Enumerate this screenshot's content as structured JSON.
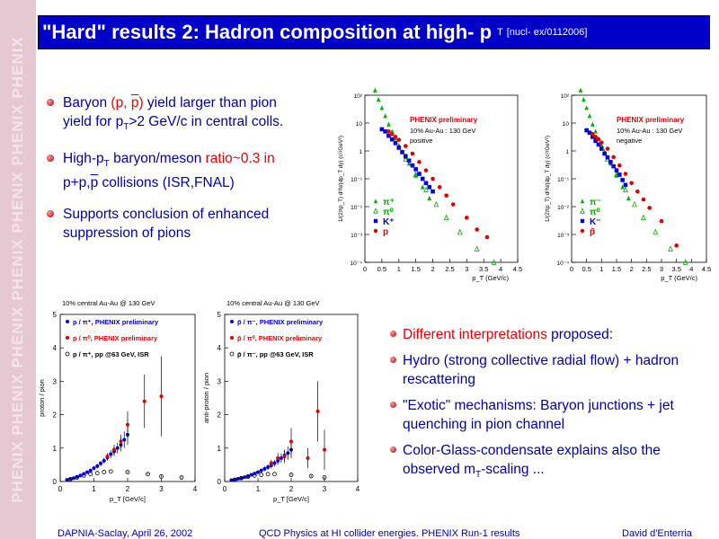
{
  "sidebar": {
    "watermark": "PHENIX PHENIX PHENIX PHENIX PHENIX PHENIX PHENIX"
  },
  "header": {
    "title_main": "\"Hard\" results 2: Hadron composition at high- p",
    "title_sub": "T",
    "title_ref": "[nucl- ex/0112006]"
  },
  "bullets_top": [
    {
      "p1": "Baryon ",
      "p2": "(p, ",
      "p3": "p",
      "p4": ")",
      "p5": " yield larger than pion",
      "p6": "yield",
      "p7": " for p",
      "p8": "T",
      "p9": ">2 GeV/c in central colls."
    },
    {
      "p1": "High-p",
      "p2": "T",
      "p3": " baryon/meson ",
      "p4": "ratio~0.3 in",
      "p5": "p+p,",
      "p6": "p",
      "p7": " collisions (ISR,FNAL)"
    },
    {
      "text": "Supports conclusion of enhanced suppression of pions"
    }
  ],
  "bullets_bottom": [
    {
      "p1": "Different interpretations",
      "p2": " proposed:"
    },
    {
      "text": "Hydro (strong collective radial flow) + hadron rescattering"
    },
    {
      "text": "\"Exotic\" mechanisms: Baryon junctions + jet quenching in pion channel"
    },
    {
      "p1": "Color-Glass-condensate explains also the observed m",
      "p2": "T",
      "p3": "-scaling ..."
    }
  ],
  "footer": {
    "left": "DAPNIA-Saclay, April 26, 2002",
    "center": "QCD Physics at HI collider energies. PHENIX Run-1 results",
    "right": "David d'Enterria"
  },
  "colors": {
    "title_bg": "#0000c8",
    "bullet_red": "#e80000",
    "text_blue": "#0000a8",
    "sidebar": "#e6c8d2"
  },
  "chart_data": [
    {
      "type": "scatter",
      "title": "PHENIX preliminary",
      "subtitle": "10% Au-Au : 130 GeV",
      "panel_label": "positive",
      "xlabel": "p_T (GeV/c)",
      "ylabel": "1/(2πp_T) d²N/(dp_T dy) (c²/GeV²)",
      "xlim": [
        0,
        4.5
      ],
      "ylim_log10": [
        -4,
        2
      ],
      "xticks": [
        "0",
        "0.5",
        "1",
        "1.5",
        "2",
        "2.5",
        "3",
        "3.5",
        "4",
        "4.5"
      ],
      "yticks": [
        "10⁻⁴",
        "10⁻³",
        "10⁻²",
        "10⁻¹",
        "1",
        "10",
        "10²"
      ],
      "legend": [
        "π⁺",
        "π⁰",
        "K⁺",
        "p"
      ],
      "series": [
        {
          "name": "π⁺",
          "color": "#00b000",
          "marker": "triangle",
          "x": [
            0.3,
            0.4,
            0.5,
            0.6,
            0.7,
            0.8,
            0.9,
            1.0,
            1.1,
            1.2,
            1.3,
            1.5,
            1.7,
            1.9
          ],
          "y": [
            150,
            70,
            35,
            18,
            9,
            5,
            2.8,
            1.6,
            0.95,
            0.6,
            0.35,
            0.13,
            0.05,
            0.02
          ]
        },
        {
          "name": "π⁰",
          "color": "#00b000",
          "marker": "open-triangle",
          "x": [
            1.2,
            1.5,
            1.8,
            2.1,
            2.4,
            2.8,
            3.3,
            3.8
          ],
          "y": [
            0.5,
            0.14,
            0.04,
            0.012,
            0.004,
            0.0012,
            0.0003,
            0.0001
          ]
        },
        {
          "name": "K⁺",
          "color": "#0000e0",
          "marker": "square",
          "x": [
            0.5,
            0.6,
            0.7,
            0.8,
            0.9,
            1.0,
            1.1,
            1.2,
            1.3,
            1.4,
            1.5,
            1.6,
            1.7,
            1.8,
            1.9,
            2.0
          ],
          "y": [
            6,
            5,
            3.5,
            2.6,
            1.9,
            1.3,
            0.9,
            0.65,
            0.45,
            0.3,
            0.22,
            0.15,
            0.1,
            0.07,
            0.05,
            0.035
          ]
        },
        {
          "name": "p",
          "color": "#e00000",
          "marker": "circle",
          "x": [
            0.7,
            0.8,
            0.9,
            1.0,
            1.2,
            1.4,
            1.6,
            1.8,
            2.0,
            2.2,
            2.4,
            2.6,
            3.0,
            3.3,
            3.6
          ],
          "y": [
            5,
            4,
            3.2,
            2.5,
            1.5,
            0.8,
            0.4,
            0.2,
            0.1,
            0.05,
            0.025,
            0.012,
            0.004,
            0.0015,
            0.0008
          ]
        }
      ]
    },
    {
      "type": "scatter",
      "title": "PHENIX preliminary",
      "subtitle": "10% Au-Au : 130 GeV",
      "panel_label": "negative",
      "xlabel": "p_T (GeV/c)",
      "ylabel": "1/(2πp_T) d²N/(dp_T dy) (c²/GeV²)",
      "xlim": [
        0,
        4.5
      ],
      "ylim_log10": [
        -4,
        2
      ],
      "xticks": [
        "0",
        "0.5",
        "1",
        "1.5",
        "2",
        "2.5",
        "3",
        "3.5",
        "4",
        "4.5"
      ],
      "yticks": [
        "10⁻⁴",
        "10⁻³",
        "10⁻²",
        "10⁻¹",
        "1",
        "10",
        "10²"
      ],
      "legend": [
        "π⁻",
        "π⁰",
        "K⁻",
        "p̄"
      ],
      "series": [
        {
          "name": "π⁻",
          "color": "#00b000",
          "marker": "triangle",
          "x": [
            0.3,
            0.4,
            0.5,
            0.6,
            0.7,
            0.8,
            0.9,
            1.0,
            1.1,
            1.2,
            1.3,
            1.5,
            1.7,
            1.9
          ],
          "y": [
            150,
            70,
            35,
            18,
            9,
            5,
            2.8,
            1.6,
            0.95,
            0.6,
            0.35,
            0.13,
            0.05,
            0.02
          ]
        },
        {
          "name": "π⁰",
          "color": "#00b000",
          "marker": "open-triangle",
          "x": [
            1.2,
            1.5,
            1.8,
            2.1,
            2.4,
            2.8,
            3.3,
            3.8
          ],
          "y": [
            0.5,
            0.14,
            0.04,
            0.012,
            0.004,
            0.0012,
            0.0003,
            0.0001
          ]
        },
        {
          "name": "K⁻",
          "color": "#0000e0",
          "marker": "square",
          "x": [
            0.5,
            0.6,
            0.7,
            0.8,
            0.9,
            1.0,
            1.1,
            1.2,
            1.3,
            1.4,
            1.5,
            1.6,
            1.7,
            1.8
          ],
          "y": [
            5.5,
            4.5,
            3.2,
            2.3,
            1.7,
            1.2,
            0.8,
            0.58,
            0.4,
            0.28,
            0.2,
            0.14,
            0.09,
            0.06
          ]
        },
        {
          "name": "p̄",
          "color": "#e00000",
          "marker": "circle",
          "x": [
            0.7,
            0.8,
            0.9,
            1.0,
            1.2,
            1.4,
            1.6,
            1.8,
            2.0,
            2.2,
            2.4,
            2.6,
            3.0,
            3.5
          ],
          "y": [
            4,
            3.2,
            2.6,
            2,
            1.2,
            0.6,
            0.3,
            0.15,
            0.07,
            0.035,
            0.018,
            0.009,
            0.003,
            0.0004
          ]
        }
      ]
    },
    {
      "type": "scatter",
      "title": "10% central Au-Au @ 130 GeV",
      "xlabel": "p_T [GeV/c]",
      "ylabel": "proton / pion",
      "xlim": [
        0,
        4
      ],
      "ylim": [
        0,
        5
      ],
      "xticks": [
        "0",
        "1",
        "2",
        "3",
        "4"
      ],
      "yticks": [
        "0",
        "1",
        "2",
        "3",
        "4",
        "5"
      ],
      "legend": [
        "p / π⁺, PHENIX preliminary",
        "p / π⁰, PHENIX preliminary",
        "p / π⁺, pp @63 GeV, ISR"
      ],
      "series": [
        {
          "name": "p / π⁺, PHENIX preliminary",
          "color": "#0000e0",
          "marker": "circle",
          "x": [
            0.2,
            0.3,
            0.4,
            0.5,
            0.6,
            0.7,
            0.8,
            0.9,
            1.0,
            1.1,
            1.2,
            1.3,
            1.4,
            1.5,
            1.6,
            1.7,
            1.8,
            1.9,
            2.0
          ],
          "y": [
            0.05,
            0.08,
            0.1,
            0.14,
            0.18,
            0.23,
            0.28,
            0.33,
            0.4,
            0.46,
            0.54,
            0.62,
            0.72,
            0.82,
            0.9,
            1.0,
            1.1,
            1.25,
            1.4
          ],
          "err": [
            0.02,
            0.02,
            0.03,
            0.03,
            0.03,
            0.04,
            0.04,
            0.05,
            0.06,
            0.07,
            0.08,
            0.09,
            0.1,
            0.12,
            0.14,
            0.16,
            0.2,
            0.25,
            0.3
          ]
        },
        {
          "name": "p / π⁰, PHENIX preliminary",
          "color": "#e00000",
          "marker": "circle",
          "x": [
            1.4,
            1.6,
            1.8,
            2.0,
            2.5,
            3.0
          ],
          "y": [
            0.75,
            0.95,
            1.2,
            1.7,
            2.4,
            2.55
          ],
          "err": [
            0.1,
            0.15,
            0.2,
            0.4,
            0.8,
            1.2
          ]
        },
        {
          "name": "p / π⁺, pp @63 GeV, ISR",
          "color": "#000000",
          "marker": "open-circle",
          "x": [
            0.3,
            0.5,
            0.7,
            0.9,
            1.1,
            1.3,
            1.5,
            2.0,
            2.6,
            3.0,
            3.6
          ],
          "y": [
            0.06,
            0.12,
            0.18,
            0.22,
            0.25,
            0.28,
            0.3,
            0.28,
            0.22,
            0.15,
            0.12
          ],
          "err": [
            0,
            0,
            0,
            0,
            0,
            0,
            0,
            0.02,
            0.02,
            0.03,
            0.03
          ]
        }
      ]
    },
    {
      "type": "scatter",
      "title": "10% central Au-Au @ 130 GeV",
      "xlabel": "p_T [GeV/c]",
      "ylabel": "anti-proton / pion",
      "xlim": [
        0,
        4
      ],
      "ylim": [
        0,
        5
      ],
      "xticks": [
        "0",
        "1",
        "2",
        "3",
        "4"
      ],
      "yticks": [
        "0",
        "1",
        "2",
        "3",
        "4",
        "5"
      ],
      "legend": [
        "p̄ / π⁻, PHENIX preliminary",
        "p̄ / π⁰, PHENIX preliminary",
        "p̄ / π⁻, pp @63 GeV, ISR"
      ],
      "series": [
        {
          "name": "p̄ / π⁻, PHENIX preliminary",
          "color": "#0000e0",
          "marker": "circle",
          "x": [
            0.2,
            0.3,
            0.4,
            0.5,
            0.6,
            0.7,
            0.8,
            0.9,
            1.0,
            1.1,
            1.2,
            1.3,
            1.4,
            1.5,
            1.6,
            1.7,
            1.8,
            1.9,
            2.0
          ],
          "y": [
            0.04,
            0.06,
            0.08,
            0.1,
            0.13,
            0.16,
            0.2,
            0.24,
            0.28,
            0.33,
            0.38,
            0.43,
            0.48,
            0.55,
            0.62,
            0.7,
            0.78,
            0.85,
            0.95
          ],
          "err": [
            0.02,
            0.02,
            0.02,
            0.03,
            0.03,
            0.04,
            0.04,
            0.05,
            0.05,
            0.06,
            0.07,
            0.08,
            0.09,
            0.1,
            0.12,
            0.14,
            0.16,
            0.2,
            0.25
          ]
        },
        {
          "name": "p̄ / π⁰, PHENIX preliminary",
          "color": "#e00000",
          "marker": "circle",
          "x": [
            1.4,
            1.6,
            1.8,
            2.0,
            2.5,
            2.8,
            3.0
          ],
          "y": [
            0.55,
            0.7,
            0.75,
            1.2,
            0.7,
            2.1,
            0.95
          ],
          "err": [
            0.1,
            0.15,
            0.2,
            0.4,
            0.3,
            0.9,
            0.6
          ]
        },
        {
          "name": "p̄ / π⁻, pp @63 GeV, ISR",
          "color": "#000000",
          "marker": "open-circle",
          "x": [
            0.3,
            0.5,
            0.7,
            0.9,
            1.1,
            1.3,
            1.5,
            2.0,
            2.6,
            3.0
          ],
          "y": [
            0.05,
            0.1,
            0.14,
            0.18,
            0.2,
            0.22,
            0.22,
            0.2,
            0.16,
            0.12
          ],
          "err": [
            0,
            0,
            0,
            0,
            0,
            0,
            0,
            0.02,
            0.02,
            0.03
          ]
        }
      ]
    }
  ]
}
